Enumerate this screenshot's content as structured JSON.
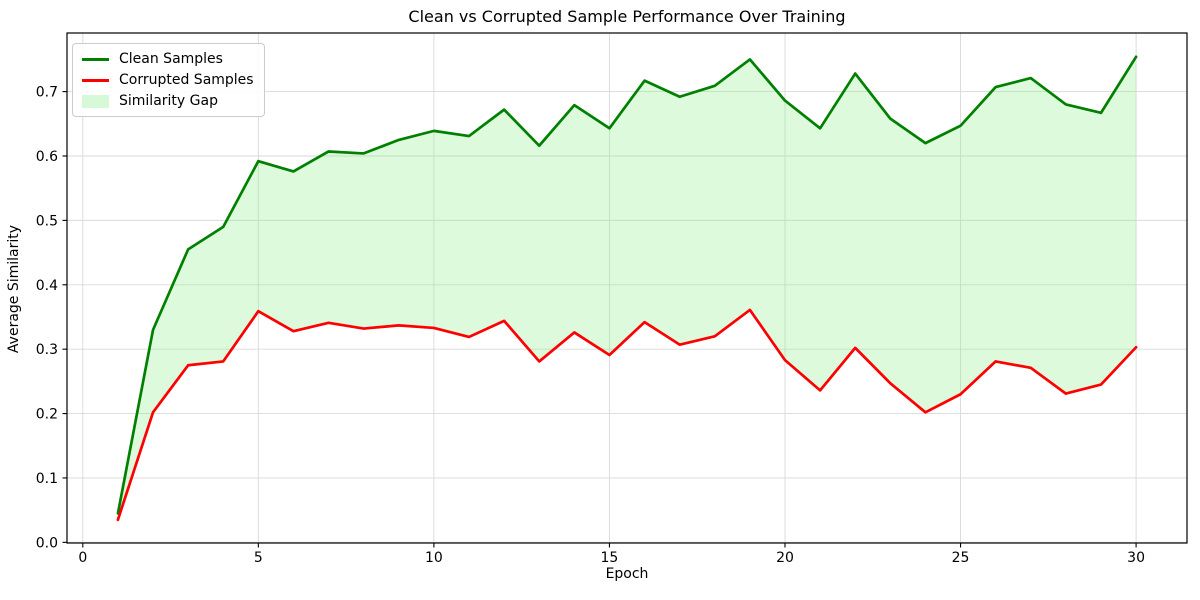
{
  "chart_data": {
    "type": "line",
    "title": "Clean vs Corrupted Sample Performance Over Training",
    "xlabel": "Epoch",
    "ylabel": "Average Similarity",
    "x": [
      1,
      2,
      3,
      4,
      5,
      6,
      7,
      8,
      9,
      10,
      11,
      12,
      13,
      14,
      15,
      16,
      17,
      18,
      19,
      20,
      21,
      22,
      23,
      24,
      25,
      26,
      27,
      28,
      29,
      30
    ],
    "series": [
      {
        "name": "Clean Samples",
        "color": "#008000",
        "values": [
          0.045,
          0.33,
          0.455,
          0.49,
          0.592,
          0.576,
          0.607,
          0.604,
          0.625,
          0.639,
          0.631,
          0.672,
          0.616,
          0.679,
          0.643,
          0.717,
          0.692,
          0.709,
          0.75,
          0.686,
          0.643,
          0.728,
          0.658,
          0.62,
          0.647,
          0.707,
          0.721,
          0.68,
          0.667,
          0.754
        ]
      },
      {
        "name": "Corrupted Samples",
        "color": "#ff0000",
        "values": [
          0.035,
          0.202,
          0.275,
          0.281,
          0.359,
          0.328,
          0.341,
          0.332,
          0.337,
          0.333,
          0.319,
          0.344,
          0.281,
          0.326,
          0.291,
          0.342,
          0.307,
          0.32,
          0.361,
          0.283,
          0.236,
          0.302,
          0.247,
          0.202,
          0.23,
          0.281,
          0.271,
          0.231,
          0.245,
          0.303
        ]
      }
    ],
    "fill_between": {
      "name": "Similarity Gap",
      "color": "#90ee90",
      "opacity": 0.3
    },
    "xlim": [
      -0.45,
      31.45
    ],
    "ylim": [
      -0.001,
      0.791
    ],
    "xticks": {
      "values": [
        0,
        5,
        10,
        15,
        20,
        25,
        30
      ],
      "labels": [
        "0",
        "5",
        "10",
        "15",
        "20",
        "25",
        "30"
      ]
    },
    "yticks": {
      "values": [
        0.0,
        0.1,
        0.2,
        0.3,
        0.4,
        0.5,
        0.6,
        0.7
      ],
      "labels": [
        "0.0",
        "0.1",
        "0.2",
        "0.3",
        "0.4",
        "0.5",
        "0.6",
        "0.7"
      ]
    },
    "grid": true,
    "grid_color": "#d9d9d9",
    "spine_color": "#000000",
    "legend_position": "upper-left"
  }
}
